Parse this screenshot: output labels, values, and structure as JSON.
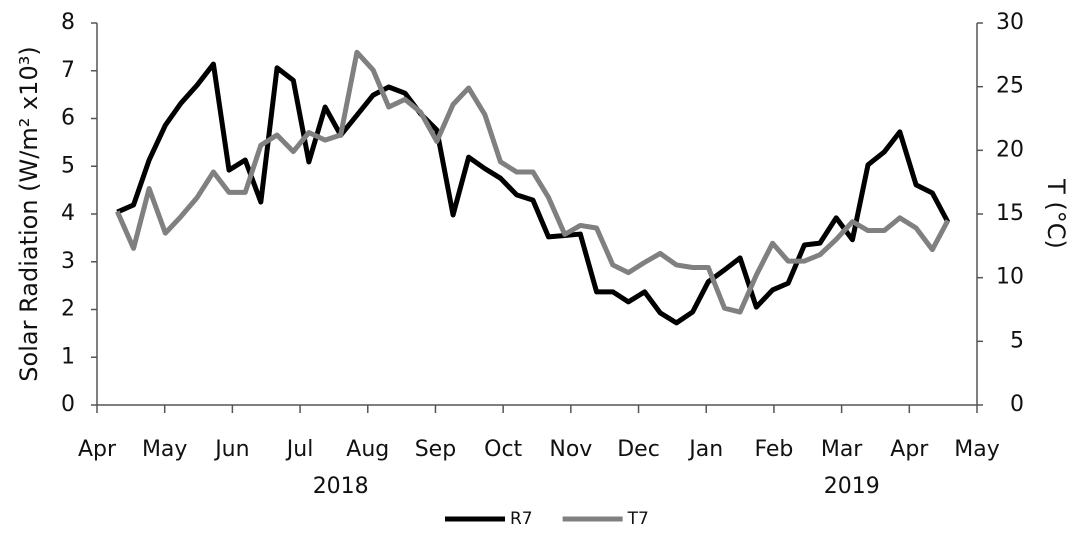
{
  "chart_data": {
    "type": "line",
    "y_label": "Solar Radiation (W/m² x10³)",
    "y2_label": "T (°C)",
    "x": [
      0.3,
      0.54,
      0.77,
      1.01,
      1.24,
      1.48,
      1.72,
      1.95,
      2.19,
      2.42,
      2.66,
      2.9,
      3.13,
      3.37,
      3.6,
      3.84,
      4.08,
      4.31,
      4.55,
      4.78,
      5.02,
      5.26,
      5.49,
      5.73,
      5.96,
      6.2,
      6.44,
      6.67,
      6.91,
      7.14,
      7.38,
      7.62,
      7.85,
      8.09,
      8.32,
      8.56,
      8.8,
      9.03,
      9.27,
      9.5,
      9.74,
      9.98,
      10.21,
      10.45,
      10.68,
      10.92,
      11.16,
      11.39,
      11.63,
      11.86,
      12.1,
      12.34,
      12.57
    ],
    "xlim": [
      0,
      13
    ],
    "xticks": [
      {
        "value": 0,
        "label": "Apr"
      },
      {
        "value": 1,
        "label": "May"
      },
      {
        "value": 2,
        "label": "Jun"
      },
      {
        "value": 3,
        "label": "Jul"
      },
      {
        "value": 4,
        "label": "Aug"
      },
      {
        "value": 5,
        "label": "Sep"
      },
      {
        "value": 6,
        "label": "Oct"
      },
      {
        "value": 7,
        "label": "Nov"
      },
      {
        "value": 8,
        "label": "Dec"
      },
      {
        "value": 9,
        "label": "Jan"
      },
      {
        "value": 10,
        "label": "Feb"
      },
      {
        "value": 11,
        "label": "Mar"
      },
      {
        "value": 12,
        "label": "Apr"
      },
      {
        "value": 13,
        "label": "May"
      }
    ],
    "x_group_labels": [
      {
        "value": 3.6,
        "label": "2018"
      },
      {
        "value": 11.15,
        "label": "2019"
      }
    ],
    "ylim": [
      0,
      8
    ],
    "yticks": [
      0,
      1,
      2,
      3,
      4,
      5,
      6,
      7,
      8
    ],
    "y2lim": [
      0,
      30
    ],
    "y2ticks": [
      0,
      5,
      10,
      15,
      20,
      25,
      30
    ],
    "series": [
      {
        "name": "R7",
        "color": "#000000",
        "values": [
          4.04,
          4.19,
          5.13,
          5.86,
          6.32,
          6.7,
          7.14,
          4.92,
          5.13,
          4.25,
          7.06,
          6.8,
          5.09,
          6.24,
          5.65,
          6.07,
          6.49,
          6.66,
          6.53,
          6.1,
          5.76,
          3.98,
          5.19,
          4.95,
          4.75,
          4.4,
          4.29,
          3.52,
          3.55,
          3.58,
          2.37,
          2.37,
          2.16,
          2.37,
          1.93,
          1.72,
          1.95,
          2.58,
          2.83,
          3.08,
          2.05,
          2.41,
          2.55,
          3.35,
          3.39,
          3.92,
          3.46,
          5.03,
          5.3,
          5.72,
          4.61,
          4.44,
          3.83
        ]
      },
      {
        "name": "T7",
        "color": "#808080",
        "axis": "y2",
        "values": [
          15.2,
          12.3,
          17.0,
          13.5,
          14.8,
          16.3,
          18.3,
          16.7,
          16.7,
          20.4,
          21.2,
          19.9,
          21.4,
          20.8,
          21.2,
          27.7,
          26.3,
          23.4,
          24.0,
          23.0,
          20.7,
          23.6,
          24.9,
          22.8,
          19.1,
          18.3,
          18.3,
          16.3,
          13.4,
          14.1,
          13.9,
          11.0,
          10.4,
          11.2,
          11.9,
          11.0,
          10.8,
          10.8,
          7.6,
          7.3,
          10.2,
          12.7,
          11.3,
          11.3,
          11.8,
          13.0,
          14.4,
          13.7,
          13.7,
          14.7,
          13.9,
          12.2,
          14.5
        ]
      }
    ],
    "legend": "bottom",
    "grid": false
  }
}
